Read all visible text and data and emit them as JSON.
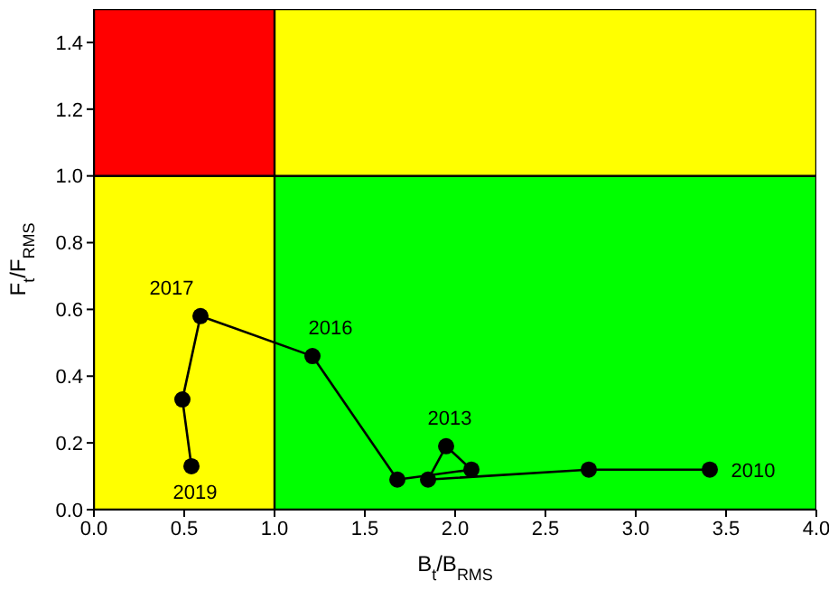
{
  "chart_data": {
    "type": "line",
    "xlabel": "B$_{t}$/B$_{RMS}$",
    "ylabel": "F$_{t}$/F$_{RMS}$",
    "x": [
      3.41,
      2.74,
      1.85,
      1.95,
      2.09,
      1.68,
      1.21,
      0.59,
      0.49,
      0.54
    ],
    "series": [
      {
        "color": "#000000",
        "values": [
          0.12,
          0.12,
          0.09,
          0.19,
          0.12,
          0.09,
          0.46,
          0.58,
          0.33,
          0.13
        ]
      }
    ],
    "xlim": [
      0,
      4
    ],
    "ylim": [
      0,
      1.5
    ],
    "xticks": [
      {
        "value": 0,
        "label": "0.0"
      },
      {
        "value": 0.5,
        "label": "0.5"
      },
      {
        "value": 1,
        "label": "1.0"
      },
      {
        "value": 1.5,
        "label": "1.5"
      },
      {
        "value": 2,
        "label": "2.0"
      },
      {
        "value": 2.5,
        "label": "2.5"
      },
      {
        "value": 3,
        "label": "3.0"
      },
      {
        "value": 3.5,
        "label": "3.5"
      },
      {
        "value": 4,
        "label": "4.0"
      }
    ],
    "yticks": [
      {
        "value": 0,
        "label": "0.0"
      },
      {
        "value": 0.2,
        "label": "0.2"
      },
      {
        "value": 0.4,
        "label": "0.4"
      },
      {
        "value": 0.6,
        "label": "0.6"
      },
      {
        "value": 0.8,
        "label": "0.8"
      },
      {
        "value": 1,
        "label": "1.0"
      },
      {
        "value": 1.2,
        "label": "1.2"
      },
      {
        "value": 1.4,
        "label": "1.4"
      }
    ],
    "bands": [
      {
        "axis": "y",
        "from": 0,
        "to": 1,
        "color": "#00ff00"
      },
      {
        "axis": "y",
        "from": 1,
        "to": 1.5,
        "color": "#ffff00"
      },
      {
        "axis": "x",
        "from": 0,
        "to": 1,
        "color": "#ffff00"
      },
      {
        "axis": "x",
        "from": 0,
        "to": 1,
        "color": "#ff0000"
      }
    ],
    "annotations": [
      {
        "text": "2010",
        "x": 3.41,
        "y": 0.12
      },
      {
        "text": "2013",
        "x": 1.95,
        "y": 0.19
      },
      {
        "text": "2016",
        "x": 1.21,
        "y": 0.46
      },
      {
        "text": "2017",
        "x": 0.59,
        "y": 0.58
      },
      {
        "text": "2019",
        "x": 0.54,
        "y": 0.13
      }
    ],
    "marker": "circle",
    "line_style": "solid",
    "grid": false
  }
}
